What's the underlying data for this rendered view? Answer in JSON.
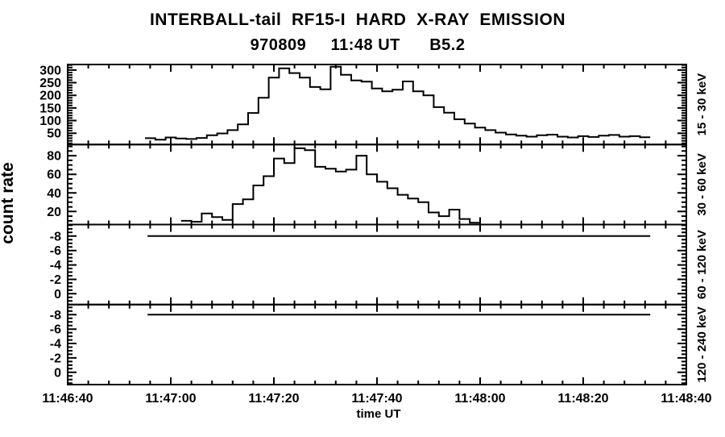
{
  "header": {
    "title": "INTERBALL-tail  RF15-I  HARD  X-RAY  EMISSION",
    "subtitle": "970809     11:48 UT      B5.2"
  },
  "axis_labels": {
    "y": "count rate",
    "x": "time UT"
  },
  "colors": {
    "foreground": "#000000",
    "background": "#ffffff"
  },
  "chart_data": {
    "type": "line",
    "style": "histogram-steps",
    "title": "INTERBALL-tail RF15-I HARD X-RAY EMISSION",
    "subtitle": "970809 11:48 UT B5.2",
    "xlabel": "time UT",
    "ylabel": "count rate",
    "color": "#000000",
    "grid": false,
    "legend": "none",
    "x_range_seconds": [
      0,
      120
    ],
    "x_major_ticks_seconds": [
      0,
      20,
      40,
      60,
      80,
      100,
      120
    ],
    "x_tick_labels": [
      "11:46:40",
      "11:47:00",
      "11:47:20",
      "11:47:40",
      "11:48:00",
      "11:48:20",
      "11:48:40"
    ],
    "x_minor_tick_seconds": 4,
    "panels": [
      {
        "band_label": "15 - 30 keV",
        "ylim_bottom_top": [
          5,
          322
        ],
        "yticks": [
          50,
          100,
          150,
          200,
          250,
          300
        ],
        "y_minor_step": 10,
        "bin_seconds": 2,
        "t_start_seconds": 15,
        "values": [
          30,
          24,
          33,
          29,
          27,
          31,
          42,
          49,
          62,
          85,
          130,
          190,
          270,
          307,
          288,
          270,
          233,
          224,
          313,
          281,
          259,
          254,
          227,
          216,
          222,
          255,
          216,
          200,
          153,
          131,
          105,
          88,
          72,
          62,
          52,
          45,
          40,
          36,
          42,
          44,
          36,
          33,
          38,
          35,
          40,
          43,
          36,
          38,
          34
        ]
      },
      {
        "band_label": "30 - 60 keV",
        "ylim_bottom_top": [
          6,
          92
        ],
        "yticks": [
          20,
          40,
          60,
          80
        ],
        "y_minor_step": 5,
        "bin_seconds": 2,
        "t_start_seconds": 22,
        "values": [
          10,
          9,
          18,
          14,
          11,
          28,
          33,
          48,
          58,
          77,
          72,
          88,
          86,
          68,
          66,
          63,
          65,
          80,
          60,
          52,
          45,
          38,
          34,
          30,
          19,
          15,
          22,
          12,
          8
        ]
      },
      {
        "band_label": "60 - 120 keV",
        "ylim_bottom_top": [
          1.5,
          -9.6
        ],
        "yticks": [
          0,
          -2,
          -4,
          -6,
          -8
        ],
        "y_minor_step": 0.5,
        "flat_line": {
          "value": -8,
          "t_start_seconds": 15.5,
          "t_end_seconds": 113
        },
        "values": []
      },
      {
        "band_label": "120 - 240 keV",
        "ylim_bottom_top": [
          1.7,
          -9.4
        ],
        "yticks": [
          0,
          -2,
          -4,
          -6,
          -8
        ],
        "y_minor_step": 0.5,
        "flat_line": {
          "value": -8,
          "t_start_seconds": 15.5,
          "t_end_seconds": 113
        },
        "values": []
      }
    ]
  }
}
